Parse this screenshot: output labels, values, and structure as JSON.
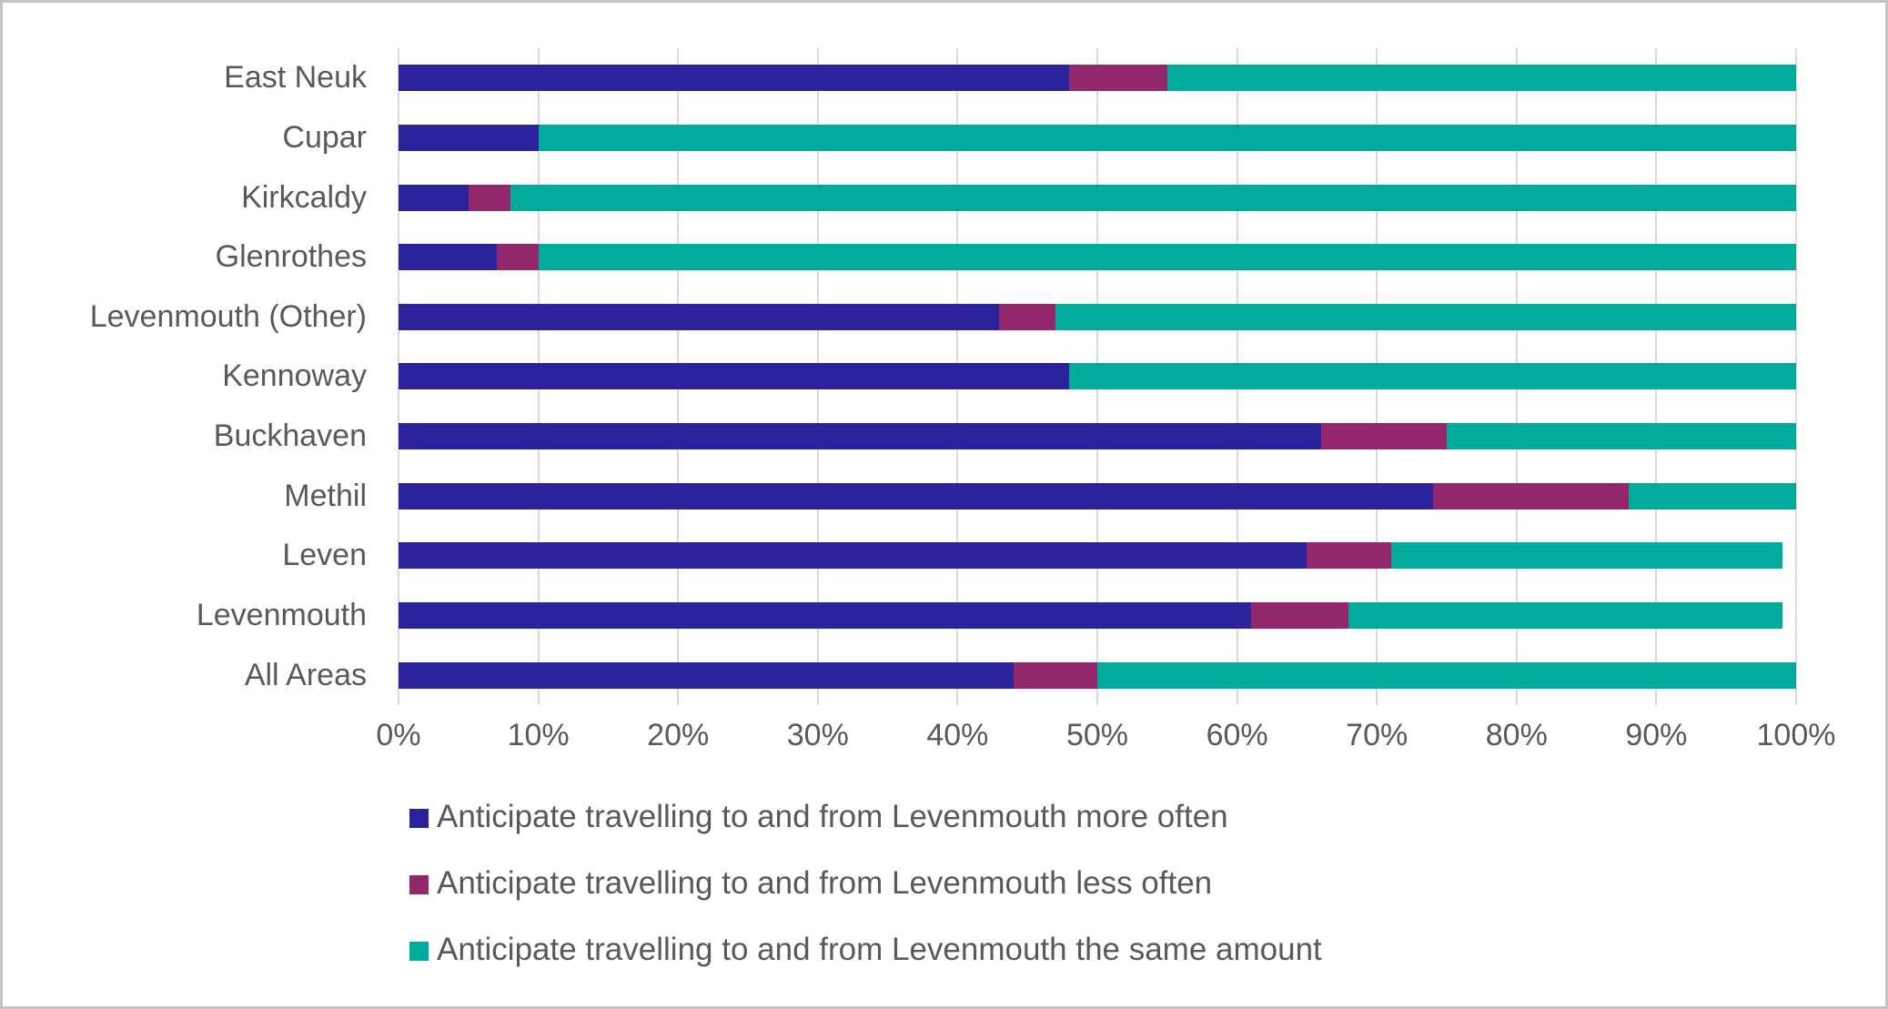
{
  "chart_data": {
    "type": "bar",
    "orientation": "horizontal-stacked",
    "title": "",
    "xlabel": "",
    "ylabel": "",
    "xlim": [
      0,
      100
    ],
    "x_tick_step": 10,
    "x_tick_labels": [
      "0%",
      "10%",
      "20%",
      "30%",
      "40%",
      "50%",
      "60%",
      "70%",
      "80%",
      "90%",
      "100%"
    ],
    "grid": "vertical",
    "gridline_color": "#d9d9d9",
    "legend_position": "bottom-left",
    "categories": [
      "East Neuk",
      "Cupar",
      "Kirkcaldy",
      "Glenrothes",
      "Levenmouth (Other)",
      "Kennoway",
      "Buckhaven",
      "Methil",
      "Leven",
      "Levenmouth",
      "All Areas"
    ],
    "series": [
      {
        "name": "Anticipate travelling to and from Levenmouth more often",
        "color": "#2a239b",
        "values": [
          48,
          10,
          5,
          7,
          43,
          48,
          66,
          74,
          65,
          61,
          44
        ]
      },
      {
        "name": "Anticipate travelling to and from Levenmouth less often",
        "color": "#93276c",
        "values": [
          7,
          0,
          3,
          3,
          4,
          0,
          9,
          14,
          6,
          7,
          6
        ]
      },
      {
        "name": "Anticipate travelling to and from Levenmouth the same amount",
        "color": "#00ab9c",
        "values": [
          45,
          90,
          92,
          90,
          53,
          52,
          25,
          12,
          28,
          31,
          50
        ]
      }
    ]
  },
  "styles": {
    "label_color": "#595959",
    "background": "#ffffff",
    "frame_border": "#c3c3c3"
  }
}
